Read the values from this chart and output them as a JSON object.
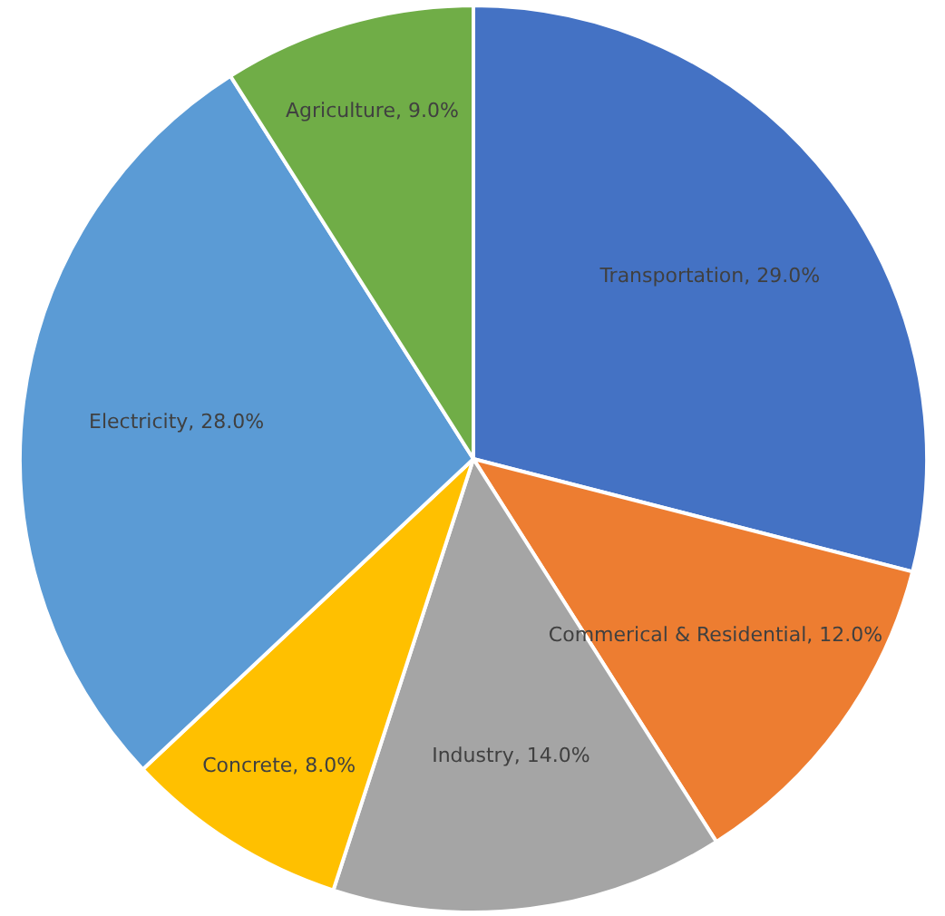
{
  "chart_data": {
    "type": "pie",
    "categories": [
      "Transportation",
      "Commerical & Residential",
      "Industry",
      "Concrete",
      "Electricity",
      "Agriculture"
    ],
    "values": [
      29,
      12,
      14,
      8,
      28,
      9
    ],
    "value_labels": [
      "29.0%",
      "12.0%",
      "14.0%",
      "8.0%",
      "28.0%",
      "9.0%"
    ],
    "colors": [
      "#4472c4",
      "#ed7d31",
      "#a5a5a5",
      "#ffc000",
      "#5b9bd5",
      "#70ad47"
    ],
    "legend": false
  }
}
